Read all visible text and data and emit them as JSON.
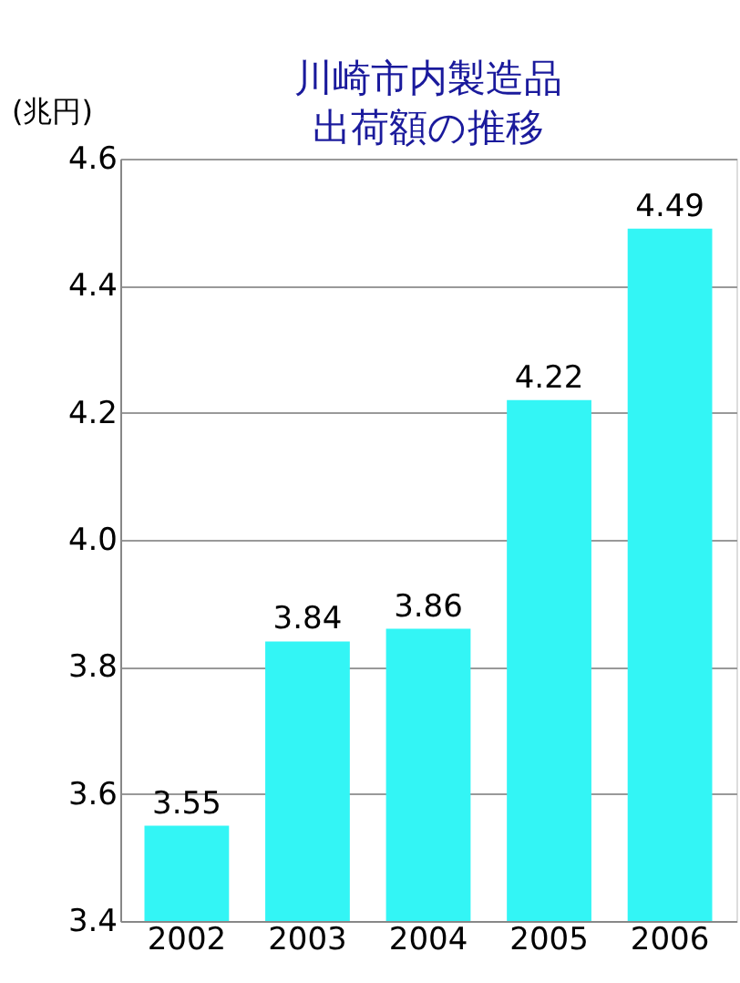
{
  "chart_data": {
    "type": "bar",
    "title": "川崎市内製造品出荷額の推移",
    "ylabel": "(兆円)",
    "categories": [
      "2002",
      "2003",
      "2004",
      "2005",
      "2006"
    ],
    "values": [
      3.55,
      3.84,
      3.86,
      4.22,
      4.49
    ],
    "color": "#33f5f5",
    "ylim": [
      3.4,
      4.6
    ],
    "yticks": [
      3.4,
      3.6,
      3.8,
      {
        "value": 4.0,
        "label": "4.0"
      },
      4.2,
      4.4,
      4.6
    ],
    "grid": "y",
    "data_labels": true
  }
}
